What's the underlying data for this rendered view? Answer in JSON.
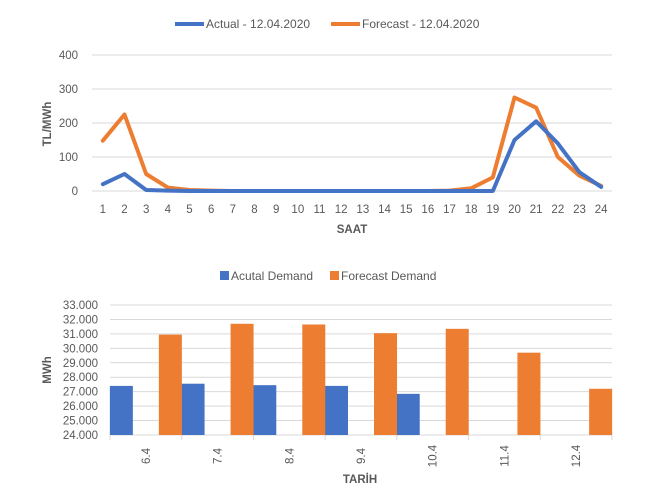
{
  "colors": {
    "actual": "#4472C4",
    "forecast": "#ED7D31",
    "grid": "#D9D9D9",
    "text": "#595959"
  },
  "chart_data": [
    {
      "type": "line",
      "title": "",
      "xlabel": "SAAT",
      "ylabel": "TL/MWh",
      "categories": [
        "1",
        "2",
        "3",
        "4",
        "5",
        "6",
        "7",
        "8",
        "9",
        "10",
        "11",
        "12",
        "13",
        "14",
        "15",
        "16",
        "17",
        "18",
        "19",
        "20",
        "21",
        "22",
        "23",
        "24"
      ],
      "y_ticks": [
        "0",
        "100",
        "200",
        "300",
        "400"
      ],
      "ylim": [
        0,
        400
      ],
      "grid": true,
      "legend": "top",
      "series": [
        {
          "name": "Actual - 12.04.2020",
          "color": "#4472C4",
          "values": [
            20,
            50,
            3,
            1,
            0,
            0,
            0,
            0,
            0,
            0,
            0,
            0,
            0,
            0,
            0,
            0,
            0,
            0,
            0,
            150,
            205,
            140,
            55,
            12
          ]
        },
        {
          "name": "Forecast - 12.04.2020",
          "color": "#ED7D31",
          "values": [
            148,
            225,
            50,
            10,
            3,
            1,
            0,
            0,
            0,
            0,
            0,
            0,
            0,
            0,
            0,
            0,
            1,
            8,
            40,
            275,
            245,
            100,
            45,
            15
          ]
        }
      ]
    },
    {
      "type": "bar",
      "title": "",
      "xlabel": "TARİH",
      "ylabel": "MWh",
      "categories": [
        "6.4",
        "7.4",
        "8.4",
        "9.4",
        "10.4",
        "11.4",
        "12.4"
      ],
      "y_ticks": [
        "24.000",
        "25.000",
        "26.000",
        "27.000",
        "28.000",
        "29.000",
        "30.000",
        "31.000",
        "32.000",
        "33.000"
      ],
      "ylim": [
        24000,
        33000
      ],
      "grid": true,
      "legend": "top",
      "series": [
        {
          "name": "Acutal Demand",
          "color": "#4472C4",
          "values": [
            27400,
            27550,
            27450,
            27400,
            26850,
            null,
            null
          ]
        },
        {
          "name": "Forecast Demand",
          "color": "#ED7D31",
          "values": [
            30950,
            31700,
            31650,
            31050,
            31350,
            29700,
            27200
          ]
        }
      ]
    }
  ]
}
